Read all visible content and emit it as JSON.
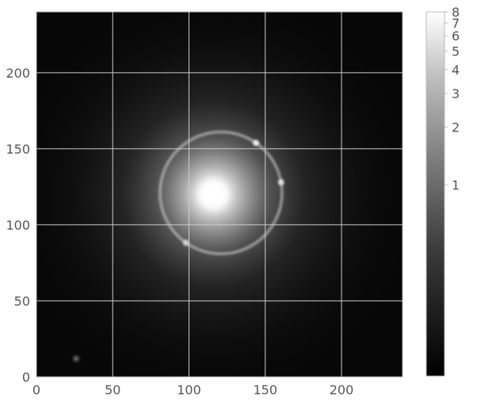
{
  "chart_data": {
    "type": "heatmap",
    "title": "",
    "xlabel": "",
    "ylabel": "",
    "xlim": [
      0,
      240
    ],
    "ylim": [
      0,
      240
    ],
    "x_ticks": [
      {
        "value": 0,
        "label": "0"
      },
      {
        "value": 50,
        "label": "50"
      },
      {
        "value": 100,
        "label": "100"
      },
      {
        "value": 150,
        "label": "150"
      },
      {
        "value": 200,
        "label": "200"
      }
    ],
    "y_ticks": [
      {
        "value": 0,
        "label": "0"
      },
      {
        "value": 50,
        "label": "50"
      },
      {
        "value": 100,
        "label": "100"
      },
      {
        "value": 150,
        "label": "150"
      },
      {
        "value": 200,
        "label": "200"
      }
    ],
    "grid": true,
    "colormap": "gray",
    "colorbar": {
      "scale": "log",
      "range": [
        0.1,
        8
      ],
      "ticks": [
        {
          "value": 1,
          "label": "1"
        },
        {
          "value": 2,
          "label": "2"
        },
        {
          "value": 3,
          "label": "3"
        },
        {
          "value": 4,
          "label": "4"
        },
        {
          "value": 5,
          "label": "5"
        },
        {
          "value": 6,
          "label": "6"
        },
        {
          "value": 7,
          "label": "7"
        },
        {
          "value": 8,
          "label": "8"
        }
      ]
    },
    "image_features": {
      "galaxy_center": [
        116,
        120
      ],
      "ring_center": [
        121,
        121
      ],
      "ring_radius": 40
    }
  },
  "colors": {
    "grid": "#cccccc",
    "frame": "#bbbbbb",
    "tick_text": "#555555"
  }
}
